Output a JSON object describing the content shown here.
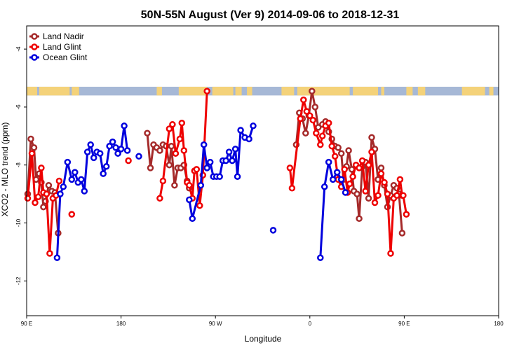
{
  "chart_data": {
    "type": "line",
    "title": "50N-55N August (Ver 9)   2014-09-06 to 2018-12-31",
    "xlabel": "Longitude",
    "ylabel": "XCO2 - MLO trend (ppm)",
    "x_ticks": [
      {
        "value": 90,
        "label": "90 E"
      },
      {
        "value": 180,
        "label": "180"
      },
      {
        "value": 270,
        "label": "90 W"
      },
      {
        "value": 360,
        "label": "0"
      },
      {
        "value": 450,
        "label": "90 E"
      },
      {
        "value": 540,
        "label": "180"
      }
    ],
    "y_ticks": [
      -12,
      -10,
      -8,
      -6,
      -4
    ],
    "xlim": [
      90,
      540
    ],
    "ylim": [
      -13.2,
      -3.2
    ],
    "legend_position": "top-left",
    "land_band": {
      "y_min": -5.6,
      "y_max": -5.3,
      "land_color": "#f4d27a",
      "ocean_color": "#a6b8d6"
    },
    "series": [
      {
        "name": "Land Nadir",
        "color": "#a52a2a",
        "points": [
          [
            91,
            -9.0
          ],
          [
            94,
            -7.1
          ],
          [
            97,
            -7.4
          ],
          [
            99,
            -8.5
          ],
          [
            102,
            -8.3
          ],
          [
            104,
            -8.6
          ],
          [
            106,
            -9.45
          ],
          [
            108,
            -9.25
          ],
          [
            111,
            -8.7
          ],
          [
            114,
            -8.9
          ],
          [
            117,
            -8.95
          ],
          [
            120,
            -10.35
          ],
          [
            205,
            -6.9
          ],
          [
            208,
            -8.1
          ],
          [
            211,
            -7.3
          ],
          [
            214,
            -7.4
          ],
          [
            217,
            -7.5
          ],
          [
            220,
            -7.3
          ],
          [
            223,
            -7.35
          ],
          [
            226,
            -8.0
          ],
          [
            228,
            -7.35
          ],
          [
            231,
            -8.7
          ],
          [
            234,
            -8.1
          ],
          [
            237,
            -8.1
          ],
          [
            240,
            -8.0
          ],
          [
            243,
            -8.55
          ],
          [
            245,
            -8.8
          ],
          [
            347,
            -7.3
          ],
          [
            350,
            -6.2
          ],
          [
            353,
            -6.4
          ],
          [
            356,
            -6.9
          ],
          [
            359,
            -6.3
          ],
          [
            362,
            -5.45
          ],
          [
            365,
            -6.0
          ],
          [
            368,
            -6.7
          ],
          [
            372,
            -6.6
          ],
          [
            375,
            -6.5
          ],
          [
            378,
            -6.85
          ],
          [
            381,
            -7.1
          ],
          [
            384,
            -7.35
          ],
          [
            387,
            -7.4
          ],
          [
            390,
            -7.6
          ],
          [
            392,
            -8.5
          ],
          [
            395,
            -8.05
          ],
          [
            397,
            -7.5
          ],
          [
            400,
            -8.15
          ],
          [
            402,
            -8.9
          ],
          [
            405,
            -9.0
          ],
          [
            407,
            -9.85
          ],
          [
            410,
            -8.05
          ],
          [
            413,
            -7.9
          ],
          [
            416,
            -9.15
          ],
          [
            419,
            -7.05
          ],
          [
            422,
            -7.45
          ],
          [
            425,
            -8.5
          ],
          [
            428,
            -8.1
          ],
          [
            431,
            -8.7
          ],
          [
            434,
            -9.45
          ],
          [
            437,
            -9.05
          ],
          [
            440,
            -8.7
          ],
          [
            443,
            -8.8
          ],
          [
            445,
            -9.0
          ],
          [
            448,
            -10.35
          ]
        ]
      },
      {
        "name": "Land Glint",
        "color": "#ee0000",
        "points": [
          [
            91,
            -9.15
          ],
          [
            95,
            -7.6
          ],
          [
            98,
            -9.3
          ],
          [
            101,
            -9.1
          ],
          [
            104,
            -8.1
          ],
          [
            106,
            -8.95
          ],
          [
            109,
            -9.0
          ],
          [
            112,
            -11.05
          ],
          [
            115,
            -9.15
          ],
          [
            118,
            -9.05
          ],
          [
            121,
            -8.55
          ],
          [
            133,
            -9.7
          ],
          [
            187,
            -7.85
          ],
          [
            217,
            -9.15
          ],
          [
            220,
            -8.55
          ],
          [
            226,
            -6.75
          ],
          [
            229,
            -6.6
          ],
          [
            232,
            -7.6
          ],
          [
            236,
            -7.1
          ],
          [
            238,
            -6.55
          ],
          [
            240,
            -7.5
          ],
          [
            243,
            -8.6
          ],
          [
            245,
            -8.7
          ],
          [
            248,
            -9.15
          ],
          [
            250,
            -8.2
          ],
          [
            252,
            -8.15
          ],
          [
            255,
            -9.4
          ],
          [
            258,
            -8.35
          ],
          [
            262,
            -5.45
          ],
          [
            341,
            -8.1
          ],
          [
            343,
            -8.8
          ],
          [
            351,
            -6.4
          ],
          [
            354,
            -5.75
          ],
          [
            357,
            -6.15
          ],
          [
            360,
            -6.3
          ],
          [
            363,
            -6.45
          ],
          [
            366,
            -6.9
          ],
          [
            370,
            -7.3
          ],
          [
            372,
            -7.0
          ],
          [
            375,
            -6.65
          ],
          [
            378,
            -6.55
          ],
          [
            381,
            -7.35
          ],
          [
            384,
            -7.7
          ],
          [
            387,
            -8.5
          ],
          [
            390,
            -8.75
          ],
          [
            393,
            -8.15
          ],
          [
            396,
            -8.95
          ],
          [
            398,
            -8.65
          ],
          [
            401,
            -8.4
          ],
          [
            404,
            -8.0
          ],
          [
            407,
            -8.1
          ],
          [
            410,
            -7.85
          ],
          [
            413,
            -8.9
          ],
          [
            416,
            -8.0
          ],
          [
            419,
            -7.55
          ],
          [
            422,
            -9.3
          ],
          [
            425,
            -9.05
          ],
          [
            428,
            -8.3
          ],
          [
            431,
            -8.6
          ],
          [
            434,
            -9.0
          ],
          [
            437,
            -11.05
          ],
          [
            440,
            -9.15
          ],
          [
            443,
            -9.05
          ],
          [
            446,
            -8.5
          ],
          [
            448,
            -9.05
          ],
          [
            449,
            -9.05
          ],
          [
            452,
            -9.7
          ]
        ]
      },
      {
        "name": "Ocean Glint",
        "color": "#0000dd",
        "points": [
          [
            119,
            -11.2
          ],
          [
            122,
            -9.0
          ],
          [
            125,
            -8.75
          ],
          [
            129,
            -7.9
          ],
          [
            133,
            -8.5
          ],
          [
            136,
            -8.25
          ],
          [
            139,
            -8.6
          ],
          [
            142,
            -8.5
          ],
          [
            145,
            -8.9
          ],
          [
            148,
            -7.55
          ],
          [
            151,
            -7.3
          ],
          [
            154,
            -7.75
          ],
          [
            157,
            -7.55
          ],
          [
            160,
            -7.6
          ],
          [
            163,
            -8.3
          ],
          [
            166,
            -8.05
          ],
          [
            169,
            -7.35
          ],
          [
            172,
            -7.2
          ],
          [
            175,
            -7.4
          ],
          [
            177,
            -7.6
          ],
          [
            180,
            -7.45
          ],
          [
            183,
            -6.65
          ],
          [
            186,
            -7.5
          ],
          [
            197,
            -7.7
          ],
          [
            245,
            -9.2
          ],
          [
            248,
            -9.85
          ],
          [
            256,
            -8.7
          ],
          [
            259,
            -7.3
          ],
          [
            262,
            -8.1
          ],
          [
            265,
            -7.9
          ],
          [
            268,
            -8.4
          ],
          [
            271,
            -8.4
          ],
          [
            274,
            -8.4
          ],
          [
            277,
            -7.85
          ],
          [
            280,
            -7.85
          ],
          [
            283,
            -7.55
          ],
          [
            286,
            -7.85
          ],
          [
            289,
            -7.45
          ],
          [
            291,
            -8.4
          ],
          [
            294,
            -6.8
          ],
          [
            298,
            -7.05
          ],
          [
            302,
            -7.1
          ],
          [
            306,
            -6.65
          ],
          [
            325,
            -10.25
          ],
          [
            370,
            -11.2
          ],
          [
            374,
            -8.75
          ],
          [
            378,
            -7.9
          ],
          [
            382,
            -8.5
          ],
          [
            386,
            -8.25
          ],
          [
            390,
            -8.5
          ],
          [
            394,
            -8.95
          ]
        ]
      }
    ]
  }
}
